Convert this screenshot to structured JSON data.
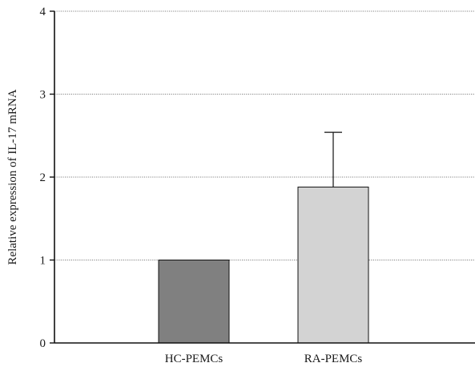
{
  "chart_data": {
    "type": "bar",
    "categories": [
      "HC-PEMCs",
      "RA-PEMCs"
    ],
    "values": [
      1.0,
      1.88
    ],
    "error_upper": [
      0,
      0.66
    ],
    "colors": [
      "#808080",
      "#d3d3d3"
    ],
    "ylabel": "Relative expression of IL-17 mRNA",
    "xlabel": "",
    "ylim": [
      0,
      4
    ],
    "yticks": [
      0,
      1,
      2,
      3,
      4
    ],
    "grid": true
  }
}
